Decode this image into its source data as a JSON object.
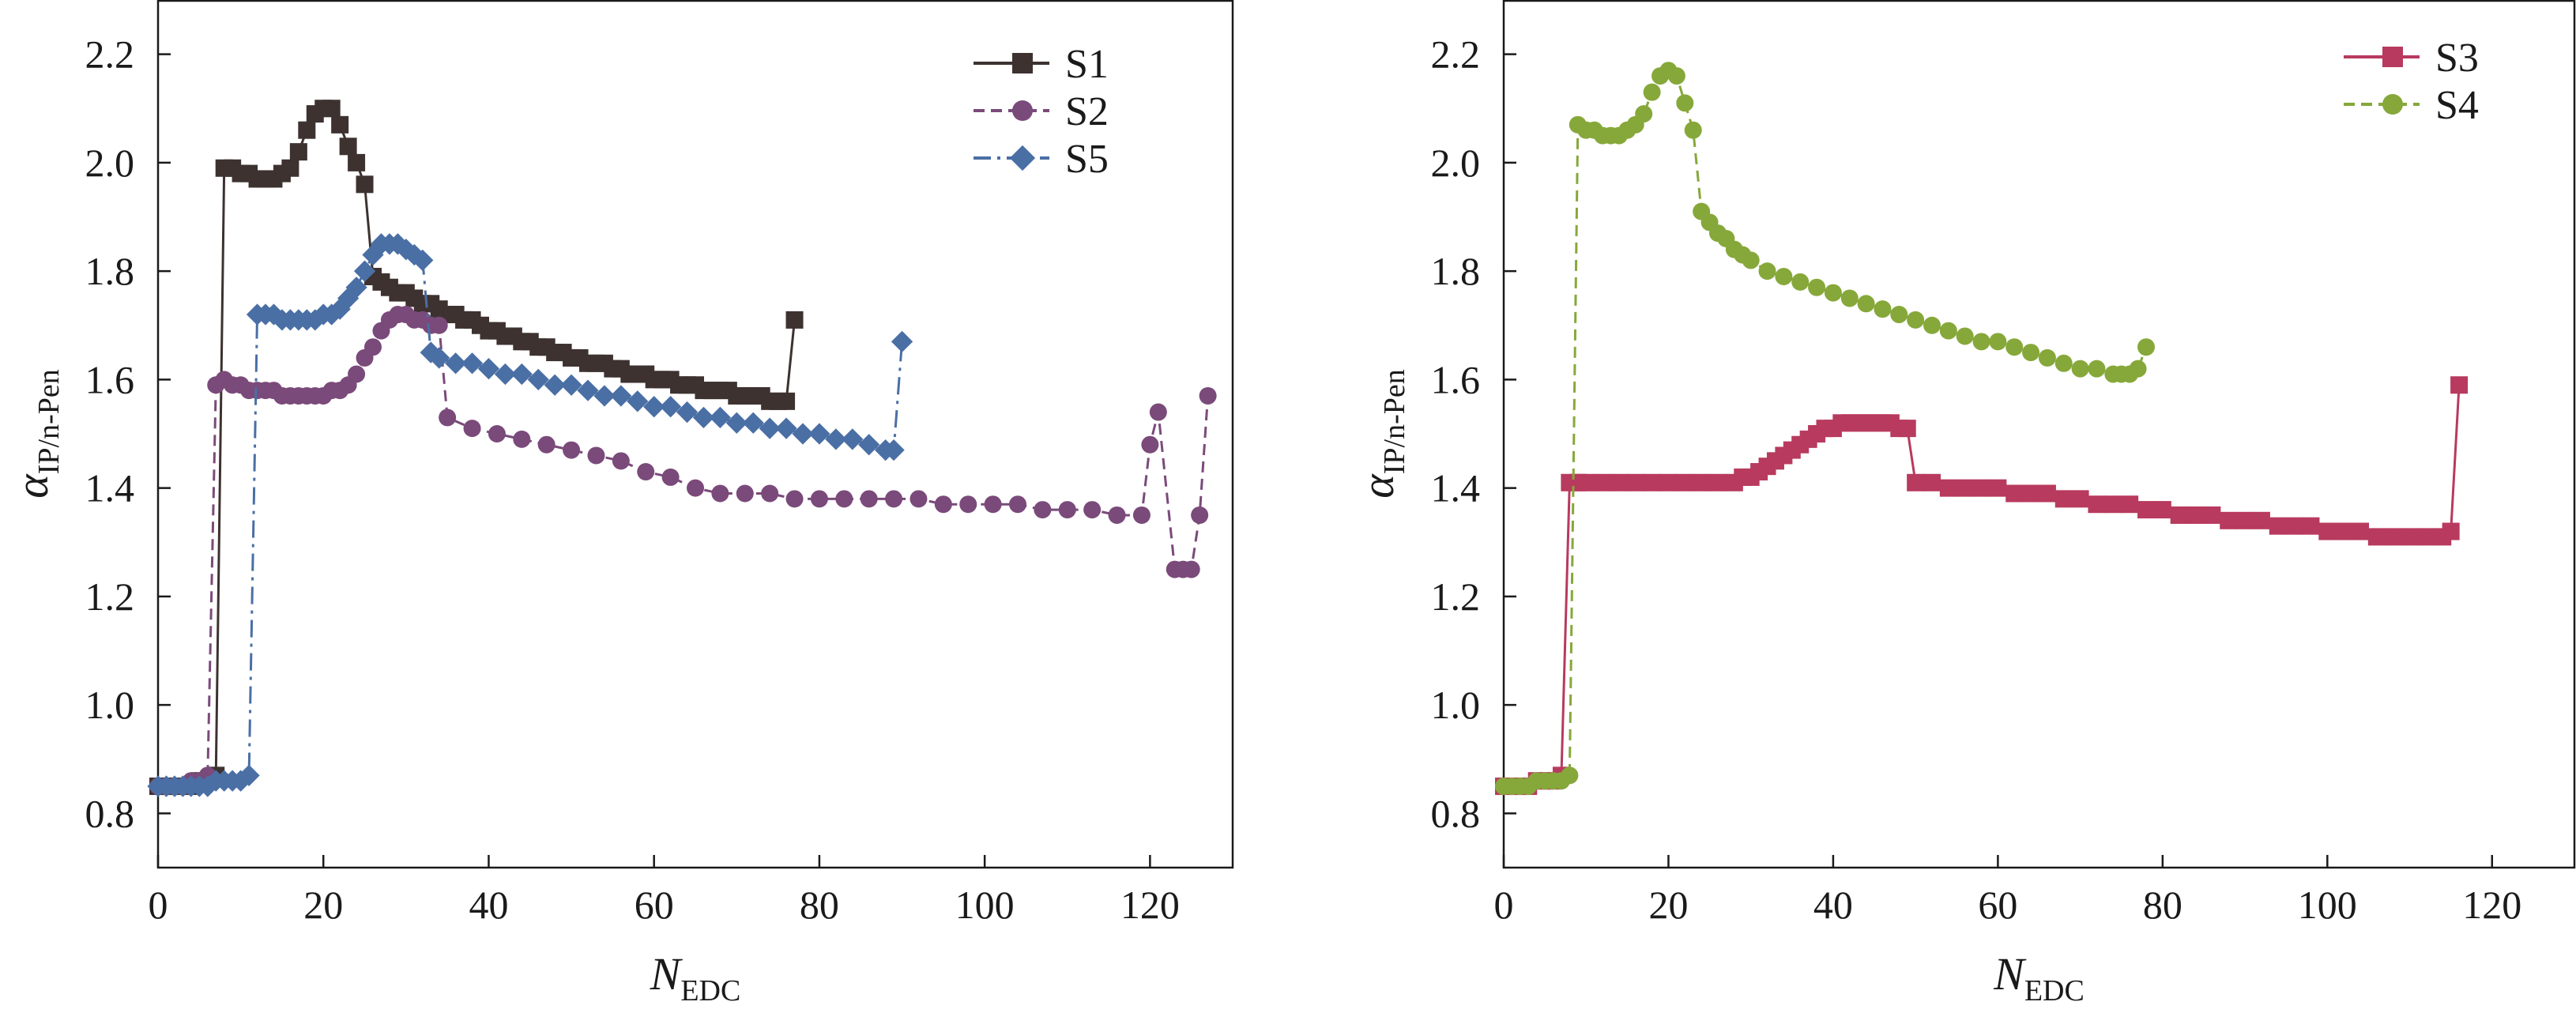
{
  "chart_data": [
    {
      "type": "line",
      "xlabel": "N",
      "xlabel_sub": "EDC",
      "ylabel": "α",
      "ylabel_sub": "IP/n-Pen",
      "xlim": [
        0,
        130
      ],
      "ylim": [
        0.7,
        2.3
      ],
      "xticks": [
        "0",
        "20",
        "40",
        "60",
        "80",
        "100",
        "120"
      ],
      "yticks": [
        "0.8",
        "1.0",
        "1.2",
        "1.4",
        "1.6",
        "1.8",
        "2.0",
        "2.2"
      ],
      "legend_position": "top-right",
      "series": [
        {
          "name": "S1",
          "color": "#3d3230",
          "marker": "square",
          "dash": "",
          "x": [
            0,
            1,
            2,
            3,
            4,
            5,
            6,
            7,
            8,
            9,
            10,
            11,
            12,
            13,
            14,
            15,
            16,
            17,
            18,
            19,
            20,
            21,
            22,
            23,
            24,
            25,
            26,
            27,
            28,
            29,
            30,
            31,
            32,
            33,
            34,
            35,
            36,
            37,
            38,
            39,
            40,
            41,
            42,
            43,
            44,
            45,
            46,
            47,
            48,
            49,
            50,
            51,
            52,
            53,
            54,
            55,
            56,
            57,
            58,
            59,
            60,
            61,
            62,
            63,
            64,
            65,
            66,
            67,
            68,
            69,
            70,
            71,
            72,
            73,
            74,
            75,
            76,
            77
          ],
          "y": [
            0.85,
            0.85,
            0.85,
            0.85,
            0.85,
            0.86,
            0.86,
            0.87,
            1.99,
            1.99,
            1.98,
            1.98,
            1.97,
            1.97,
            1.97,
            1.98,
            1.99,
            2.02,
            2.06,
            2.09,
            2.1,
            2.1,
            2.07,
            2.03,
            2.0,
            1.96,
            1.79,
            1.78,
            1.77,
            1.76,
            1.76,
            1.75,
            1.74,
            1.74,
            1.73,
            1.72,
            1.72,
            1.71,
            1.71,
            1.7,
            1.69,
            1.69,
            1.68,
            1.68,
            1.67,
            1.67,
            1.66,
            1.66,
            1.65,
            1.65,
            1.64,
            1.64,
            1.63,
            1.63,
            1.63,
            1.62,
            1.62,
            1.61,
            1.61,
            1.61,
            1.6,
            1.6,
            1.6,
            1.59,
            1.59,
            1.59,
            1.58,
            1.58,
            1.58,
            1.58,
            1.57,
            1.57,
            1.57,
            1.57,
            1.56,
            1.56,
            1.56,
            1.71
          ]
        },
        {
          "name": "S2",
          "color": "#7a4a7a",
          "marker": "circle",
          "dash": "14,8",
          "x": [
            0,
            1,
            2,
            3,
            4,
            5,
            6,
            7,
            8,
            9,
            10,
            11,
            12,
            13,
            14,
            15,
            16,
            17,
            18,
            19,
            20,
            21,
            22,
            23,
            24,
            25,
            26,
            27,
            28,
            29,
            30,
            31,
            32,
            33,
            34,
            35,
            38,
            41,
            44,
            47,
            50,
            53,
            56,
            59,
            62,
            65,
            68,
            71,
            74,
            77,
            80,
            83,
            86,
            89,
            92,
            95,
            98,
            101,
            104,
            107,
            110,
            113,
            116,
            119,
            120,
            121,
            123,
            124,
            125,
            126,
            127
          ],
          "y": [
            0.85,
            0.85,
            0.85,
            0.85,
            0.86,
            0.86,
            0.87,
            1.59,
            1.6,
            1.59,
            1.59,
            1.58,
            1.58,
            1.58,
            1.58,
            1.57,
            1.57,
            1.57,
            1.57,
            1.57,
            1.57,
            1.58,
            1.58,
            1.59,
            1.61,
            1.64,
            1.66,
            1.69,
            1.71,
            1.72,
            1.72,
            1.71,
            1.71,
            1.7,
            1.7,
            1.53,
            1.51,
            1.5,
            1.49,
            1.48,
            1.47,
            1.46,
            1.45,
            1.43,
            1.42,
            1.4,
            1.39,
            1.39,
            1.39,
            1.38,
            1.38,
            1.38,
            1.38,
            1.38,
            1.38,
            1.37,
            1.37,
            1.37,
            1.37,
            1.36,
            1.36,
            1.36,
            1.35,
            1.35,
            1.48,
            1.54,
            1.25,
            1.25,
            1.25,
            1.35,
            1.57
          ]
        },
        {
          "name": "S5",
          "color": "#4a6fa5",
          "marker": "diamond",
          "dash": "22,8,4,8",
          "x": [
            0,
            1,
            2,
            3,
            4,
            5,
            6,
            7,
            8,
            9,
            10,
            11,
            12,
            13,
            14,
            15,
            16,
            17,
            18,
            19,
            20,
            21,
            22,
            23,
            24,
            25,
            26,
            27,
            28,
            29,
            30,
            31,
            32,
            33,
            34,
            36,
            38,
            40,
            42,
            44,
            46,
            48,
            50,
            52,
            54,
            56,
            58,
            60,
            62,
            64,
            66,
            68,
            70,
            72,
            74,
            76,
            78,
            80,
            82,
            84,
            86,
            88,
            89,
            90
          ],
          "y": [
            0.85,
            0.85,
            0.85,
            0.85,
            0.85,
            0.85,
            0.85,
            0.86,
            0.86,
            0.86,
            0.86,
            0.87,
            1.72,
            1.72,
            1.72,
            1.71,
            1.71,
            1.71,
            1.71,
            1.71,
            1.72,
            1.72,
            1.73,
            1.75,
            1.77,
            1.8,
            1.83,
            1.85,
            1.85,
            1.85,
            1.84,
            1.83,
            1.82,
            1.65,
            1.64,
            1.63,
            1.63,
            1.62,
            1.61,
            1.61,
            1.6,
            1.59,
            1.59,
            1.58,
            1.57,
            1.57,
            1.56,
            1.55,
            1.55,
            1.54,
            1.53,
            1.53,
            1.52,
            1.52,
            1.51,
            1.51,
            1.5,
            1.5,
            1.49,
            1.49,
            1.48,
            1.47,
            1.47,
            1.67
          ]
        }
      ]
    },
    {
      "type": "line",
      "xlabel": "N",
      "xlabel_sub": "EDC",
      "ylabel": "α",
      "ylabel_sub": "IP/n-Pen",
      "xlim": [
        0,
        130
      ],
      "ylim": [
        0.7,
        2.3
      ],
      "xticks": [
        "0",
        "20",
        "40",
        "60",
        "80",
        "100",
        "120"
      ],
      "yticks": [
        "0.8",
        "1.0",
        "1.2",
        "1.4",
        "1.6",
        "1.8",
        "2.0",
        "2.2"
      ],
      "legend_position": "top-right",
      "series": [
        {
          "name": "S3",
          "color": "#b83a5e",
          "marker": "square",
          "dash": "",
          "x": [
            0,
            1,
            2,
            3,
            4,
            5,
            6,
            7,
            8,
            9,
            10,
            12,
            14,
            16,
            18,
            20,
            22,
            24,
            26,
            28,
            29,
            30,
            31,
            32,
            33,
            34,
            35,
            36,
            37,
            38,
            39,
            40,
            41,
            42,
            43,
            44,
            45,
            46,
            47,
            48,
            49,
            50,
            52,
            54,
            56,
            58,
            60,
            62,
            64,
            66,
            68,
            70,
            72,
            74,
            76,
            78,
            80,
            82,
            84,
            86,
            88,
            90,
            92,
            94,
            96,
            98,
            100,
            102,
            104,
            106,
            108,
            110,
            112,
            114,
            115,
            116
          ],
          "y": [
            0.85,
            0.85,
            0.85,
            0.85,
            0.86,
            0.86,
            0.86,
            0.87,
            1.41,
            1.41,
            1.41,
            1.41,
            1.41,
            1.41,
            1.41,
            1.41,
            1.41,
            1.41,
            1.41,
            1.41,
            1.42,
            1.42,
            1.43,
            1.44,
            1.45,
            1.46,
            1.47,
            1.48,
            1.49,
            1.5,
            1.51,
            1.51,
            1.52,
            1.52,
            1.52,
            1.52,
            1.52,
            1.52,
            1.52,
            1.51,
            1.51,
            1.41,
            1.41,
            1.4,
            1.4,
            1.4,
            1.4,
            1.39,
            1.39,
            1.39,
            1.38,
            1.38,
            1.37,
            1.37,
            1.37,
            1.36,
            1.36,
            1.35,
            1.35,
            1.35,
            1.34,
            1.34,
            1.34,
            1.33,
            1.33,
            1.33,
            1.32,
            1.32,
            1.32,
            1.31,
            1.31,
            1.31,
            1.31,
            1.31,
            1.32,
            1.59
          ]
        },
        {
          "name": "S4",
          "color": "#86a83a",
          "marker": "circle",
          "dash": "14,8",
          "x": [
            0,
            1,
            2,
            3,
            4,
            5,
            6,
            7,
            8,
            9,
            10,
            11,
            12,
            13,
            14,
            15,
            16,
            17,
            18,
            19,
            20,
            21,
            22,
            23,
            24,
            25,
            26,
            27,
            28,
            29,
            30,
            32,
            34,
            36,
            38,
            40,
            42,
            44,
            46,
            48,
            50,
            52,
            54,
            56,
            58,
            60,
            62,
            64,
            66,
            68,
            70,
            72,
            74,
            75,
            76,
            77,
            78
          ],
          "y": [
            0.85,
            0.85,
            0.85,
            0.85,
            0.86,
            0.86,
            0.86,
            0.86,
            0.87,
            2.07,
            2.06,
            2.06,
            2.05,
            2.05,
            2.05,
            2.06,
            2.07,
            2.09,
            2.13,
            2.16,
            2.17,
            2.16,
            2.11,
            2.06,
            1.91,
            1.89,
            1.87,
            1.86,
            1.84,
            1.83,
            1.82,
            1.8,
            1.79,
            1.78,
            1.77,
            1.76,
            1.75,
            1.74,
            1.73,
            1.72,
            1.71,
            1.7,
            1.69,
            1.68,
            1.67,
            1.67,
            1.66,
            1.65,
            1.64,
            1.63,
            1.62,
            1.62,
            1.61,
            1.61,
            1.61,
            1.62,
            1.66
          ]
        }
      ]
    }
  ]
}
